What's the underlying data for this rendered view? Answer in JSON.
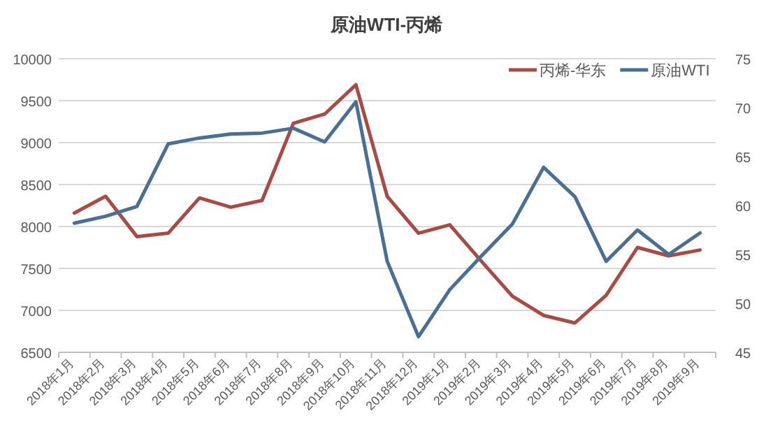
{
  "chart_data": {
    "type": "line",
    "title": "原油WTI-丙烯",
    "categories": [
      "2018年1月",
      "2018年2月",
      "2018年3月",
      "2018年4月",
      "2018年5月",
      "2018年6月",
      "2018年7月",
      "2018年8月",
      "2018年9月",
      "2018年10月",
      "2018年11月",
      "2018年12月",
      "2019年1月",
      "2019年2月",
      "2019年3月",
      "2019年4月",
      "2019年5月",
      "2019年6月",
      "2019年7月",
      "2019年8月",
      "2019年9月"
    ],
    "series": [
      {
        "name": "丙烯-华东",
        "color": "#a94a45",
        "values": [
          8160,
          8360,
          7880,
          7920,
          8340,
          8230,
          8310,
          9230,
          9340,
          9690,
          8360,
          7920,
          8020,
          7590,
          7170,
          6940,
          6850,
          7180,
          7750,
          7650,
          7720
        ]
      },
      {
        "name": "原油WTI",
        "color": "#4a6f96",
        "axis": "y2",
        "values": [
          58.2,
          58.9,
          59.9,
          66.3,
          66.9,
          67.3,
          67.4,
          67.9,
          66.5,
          70.6,
          54.3,
          46.6,
          51.4,
          54.8,
          58.1,
          63.9,
          60.9,
          54.3,
          57.5,
          55.0,
          57.2
        ]
      }
    ],
    "ylim": [
      6500,
      10000
    ],
    "yticks": [
      6500,
      7000,
      7500,
      8000,
      8500,
      9000,
      9500,
      10000
    ],
    "y2lim": [
      45,
      75
    ],
    "y2ticks": [
      45,
      50,
      55,
      60,
      65,
      70,
      75
    ],
    "grid": "y",
    "legend": "top right",
    "marker": "none",
    "line_style": "solid"
  }
}
